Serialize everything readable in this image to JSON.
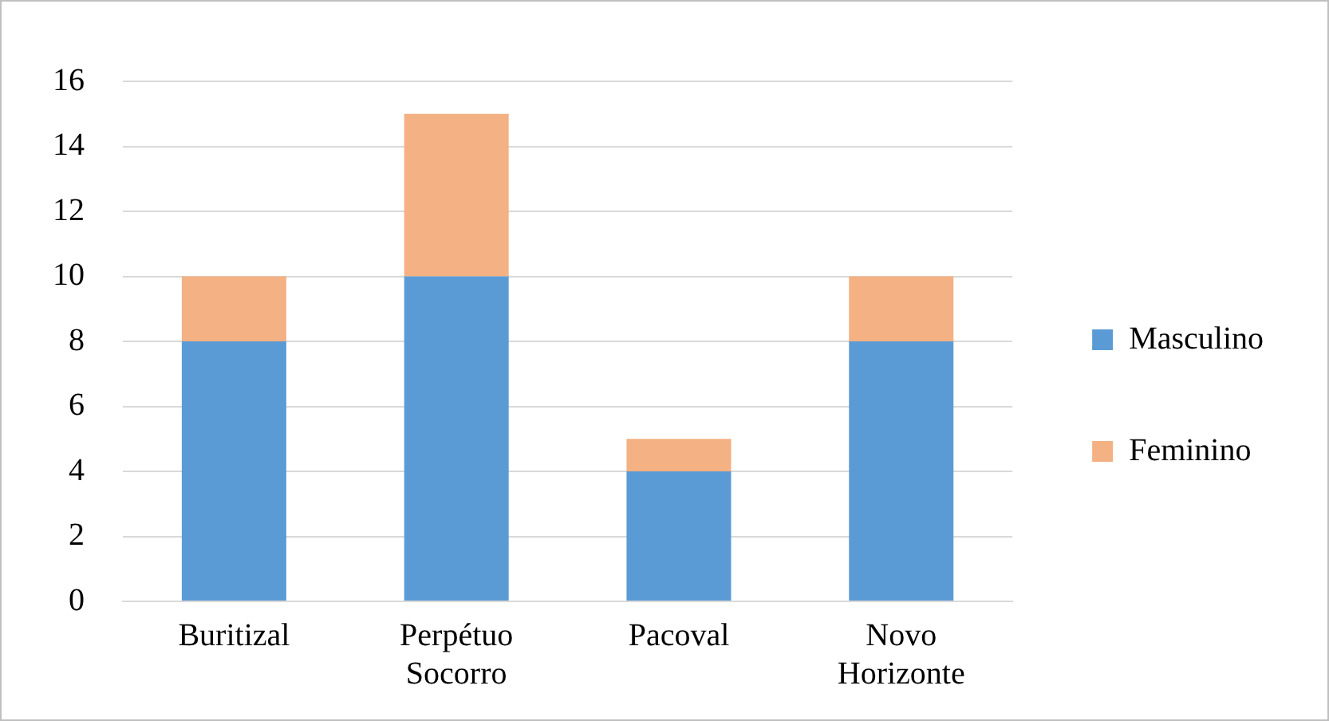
{
  "chart_data": {
    "type": "bar",
    "stacked": true,
    "categories": [
      "Buritizal",
      "Perpétuo Socorro",
      "Pacoval",
      "Novo Horizonte"
    ],
    "series": [
      {
        "name": "Masculino",
        "color": "#5b9bd5",
        "values": [
          8,
          10,
          4,
          8
        ]
      },
      {
        "name": "Feminino",
        "color": "#f4b183",
        "values": [
          2,
          5,
          1,
          2
        ]
      }
    ],
    "ylim": [
      0,
      16
    ],
    "yticks": [
      0,
      2,
      4,
      6,
      8,
      10,
      12,
      14,
      16
    ],
    "grid": "y",
    "legend": "right"
  }
}
